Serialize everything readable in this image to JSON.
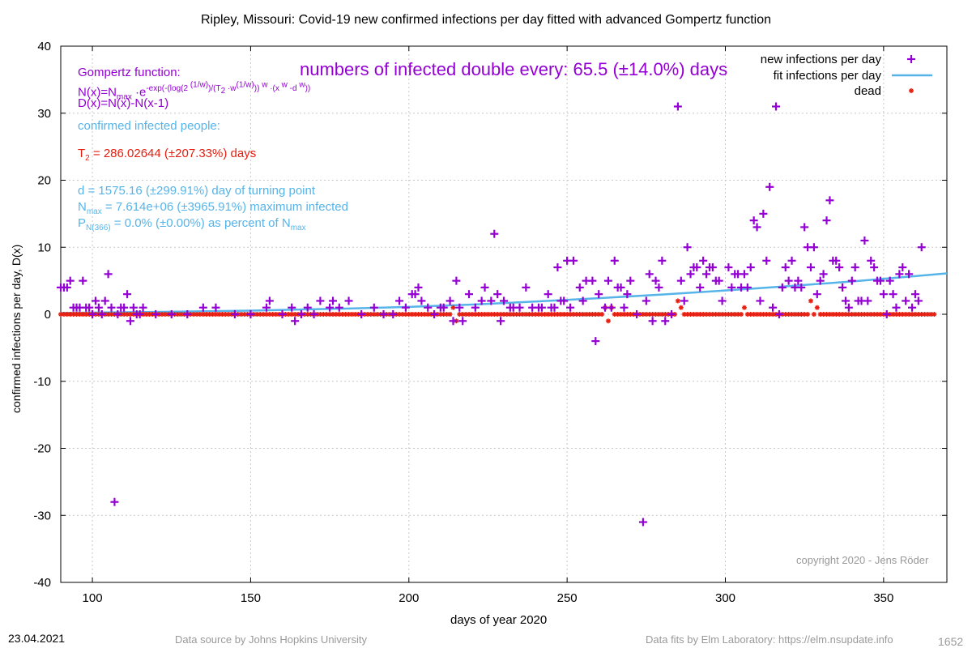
{
  "chart_data": {
    "type": "scatter",
    "title": "Ripley,  Missouri: Covid-19 new confirmed infections per day fitted with advanced Gompertz function",
    "xlabel": "days of year 2020",
    "ylabel": "confirmed infections per day, D(x)",
    "xlim": [
      90,
      370
    ],
    "ylim": [
      -40,
      40
    ],
    "xticks": [
      100,
      150,
      200,
      250,
      300,
      350
    ],
    "yticks": [
      -40,
      -30,
      -20,
      -10,
      0,
      10,
      20,
      30,
      40
    ],
    "grid": true,
    "legend_position": "top-right",
    "series": [
      {
        "name": "new infections per day",
        "style": "plus",
        "color": "#9400d3",
        "points": [
          [
            90,
            4
          ],
          [
            91,
            4
          ],
          [
            92,
            4
          ],
          [
            93,
            5
          ],
          [
            94,
            1
          ],
          [
            95,
            1
          ],
          [
            96,
            1
          ],
          [
            97,
            5
          ],
          [
            98,
            1
          ],
          [
            99,
            1
          ],
          [
            100,
            0
          ],
          [
            101,
            2
          ],
          [
            102,
            1
          ],
          [
            103,
            0
          ],
          [
            104,
            2
          ],
          [
            105,
            6
          ],
          [
            106,
            1
          ],
          [
            107,
            -28
          ],
          [
            108,
            0
          ],
          [
            109,
            1
          ],
          [
            110,
            1
          ],
          [
            111,
            3
          ],
          [
            112,
            -1
          ],
          [
            113,
            1
          ],
          [
            114,
            0
          ],
          [
            115,
            0
          ],
          [
            116,
            1
          ],
          [
            120,
            0
          ],
          [
            125,
            0
          ],
          [
            130,
            0
          ],
          [
            135,
            1
          ],
          [
            139,
            1
          ],
          [
            145,
            0
          ],
          [
            150,
            0
          ],
          [
            155,
            1
          ],
          [
            156,
            2
          ],
          [
            160,
            0
          ],
          [
            163,
            1
          ],
          [
            164,
            -1
          ],
          [
            166,
            0
          ],
          [
            168,
            1
          ],
          [
            170,
            0
          ],
          [
            172,
            2
          ],
          [
            175,
            1
          ],
          [
            176,
            2
          ],
          [
            178,
            1
          ],
          [
            181,
            2
          ],
          [
            185,
            0
          ],
          [
            189,
            1
          ],
          [
            192,
            0
          ],
          [
            195,
            0
          ],
          [
            197,
            2
          ],
          [
            199,
            1
          ],
          [
            201,
            3
          ],
          [
            202,
            3
          ],
          [
            203,
            4
          ],
          [
            204,
            2
          ],
          [
            206,
            1
          ],
          [
            208,
            0
          ],
          [
            210,
            1
          ],
          [
            211,
            1
          ],
          [
            213,
            2
          ],
          [
            214,
            -1
          ],
          [
            215,
            5
          ],
          [
            216,
            1
          ],
          [
            217,
            -1
          ],
          [
            219,
            3
          ],
          [
            221,
            1
          ],
          [
            223,
            2
          ],
          [
            224,
            4
          ],
          [
            226,
            2
          ],
          [
            227,
            12
          ],
          [
            228,
            3
          ],
          [
            229,
            -1
          ],
          [
            230,
            2
          ],
          [
            232,
            1
          ],
          [
            233,
            1
          ],
          [
            235,
            1
          ],
          [
            237,
            4
          ],
          [
            239,
            1
          ],
          [
            241,
            1
          ],
          [
            242,
            1
          ],
          [
            244,
            3
          ],
          [
            245,
            1
          ],
          [
            246,
            1
          ],
          [
            247,
            7
          ],
          [
            248,
            2
          ],
          [
            249,
            2
          ],
          [
            250,
            8
          ],
          [
            251,
            1
          ],
          [
            252,
            8
          ],
          [
            254,
            4
          ],
          [
            255,
            2
          ],
          [
            256,
            5
          ],
          [
            258,
            5
          ],
          [
            259,
            -4
          ],
          [
            260,
            3
          ],
          [
            262,
            1
          ],
          [
            263,
            5
          ],
          [
            264,
            1
          ],
          [
            265,
            8
          ],
          [
            266,
            4
          ],
          [
            267,
            4
          ],
          [
            268,
            1
          ],
          [
            269,
            3
          ],
          [
            270,
            5
          ],
          [
            272,
            0
          ],
          [
            274,
            -31
          ],
          [
            275,
            2
          ],
          [
            276,
            6
          ],
          [
            277,
            -1
          ],
          [
            278,
            5
          ],
          [
            279,
            4
          ],
          [
            280,
            8
          ],
          [
            281,
            -1
          ],
          [
            283,
            0
          ],
          [
            285,
            31
          ],
          [
            286,
            5
          ],
          [
            287,
            2
          ],
          [
            288,
            10
          ],
          [
            289,
            6
          ],
          [
            290,
            7
          ],
          [
            291,
            7
          ],
          [
            292,
            4
          ],
          [
            293,
            8
          ],
          [
            294,
            6
          ],
          [
            295,
            7
          ],
          [
            296,
            7
          ],
          [
            297,
            5
          ],
          [
            298,
            5
          ],
          [
            299,
            2
          ],
          [
            301,
            7
          ],
          [
            302,
            4
          ],
          [
            303,
            6
          ],
          [
            304,
            6
          ],
          [
            305,
            4
          ],
          [
            306,
            6
          ],
          [
            307,
            4
          ],
          [
            308,
            7
          ],
          [
            309,
            14
          ],
          [
            310,
            13
          ],
          [
            311,
            2
          ],
          [
            312,
            15
          ],
          [
            313,
            8
          ],
          [
            314,
            19
          ],
          [
            315,
            1
          ],
          [
            316,
            31
          ],
          [
            317,
            0
          ],
          [
            318,
            4
          ],
          [
            319,
            7
          ],
          [
            320,
            5
          ],
          [
            321,
            8
          ],
          [
            322,
            4
          ],
          [
            323,
            5
          ],
          [
            324,
            4
          ],
          [
            325,
            13
          ],
          [
            326,
            10
          ],
          [
            327,
            7
          ],
          [
            328,
            10
          ],
          [
            329,
            3
          ],
          [
            330,
            5
          ],
          [
            331,
            6
          ],
          [
            332,
            14
          ],
          [
            333,
            17
          ],
          [
            334,
            8
          ],
          [
            335,
            8
          ],
          [
            336,
            7
          ],
          [
            337,
            4
          ],
          [
            338,
            2
          ],
          [
            339,
            1
          ],
          [
            340,
            5
          ],
          [
            341,
            7
          ],
          [
            342,
            2
          ],
          [
            343,
            2
          ],
          [
            344,
            11
          ],
          [
            345,
            2
          ],
          [
            346,
            8
          ],
          [
            347,
            7
          ],
          [
            348,
            5
          ],
          [
            349,
            5
          ],
          [
            350,
            3
          ],
          [
            351,
            0
          ],
          [
            352,
            5
          ],
          [
            353,
            3
          ],
          [
            354,
            1
          ],
          [
            355,
            6
          ],
          [
            356,
            7
          ],
          [
            357,
            2
          ],
          [
            358,
            6
          ],
          [
            359,
            1
          ],
          [
            360,
            3
          ],
          [
            361,
            2
          ],
          [
            362,
            10
          ]
        ]
      },
      {
        "name": "fit infections per day",
        "style": "line",
        "color": "#56b4e9",
        "points": [
          [
            90,
            0.2
          ],
          [
            120,
            0.35
          ],
          [
            150,
            0.55
          ],
          [
            180,
            0.85
          ],
          [
            200,
            1.1
          ],
          [
            220,
            1.45
          ],
          [
            240,
            1.9
          ],
          [
            260,
            2.4
          ],
          [
            280,
            2.95
          ],
          [
            300,
            3.55
          ],
          [
            320,
            4.2
          ],
          [
            340,
            4.9
          ],
          [
            360,
            5.7
          ],
          [
            370,
            6.1
          ]
        ]
      },
      {
        "name": "dead",
        "style": "star",
        "color": "#e51e10",
        "zero_from": 90,
        "zero_to": 366,
        "points": [
          [
            214,
            1
          ],
          [
            215,
            -1
          ],
          [
            262,
            1
          ],
          [
            263,
            -1
          ],
          [
            264,
            1
          ],
          [
            285,
            2
          ],
          [
            286,
            1
          ],
          [
            306,
            1
          ],
          [
            327,
            2
          ],
          [
            329,
            1
          ]
        ]
      }
    ]
  },
  "annotations": {
    "gompertz_heading": "Gompertz function:",
    "formula_n_prefix": "N(x)=N",
    "formula_n_sub": "max",
    "formula_n_mid": " ·e",
    "formula_n_sup1": "-exp(-(log(2 ",
    "formula_n_sup2": "(1/w)",
    "formula_n_sup3": ")/(T",
    "formula_n_sup4": "2",
    "formula_n_sup5": " ·w",
    "formula_n_sup6": "(1/w)",
    "formula_n_sup7": ")) ",
    "formula_n_sup8": "w",
    "formula_n_sup9": " ·(x ",
    "formula_n_sup10": "w",
    "formula_n_sup11": " -d ",
    "formula_n_sup12": "w",
    "formula_n_sup13": "))",
    "formula_d": "D(x)=N(x)-N(x-1)",
    "doubling": "numbers of infected double every: 65.5 (±14.0%) days",
    "confirmed": "confirmed infected people:",
    "t2_prefix": "T",
    "t2_sub": "2",
    "t2_rest": " = 286.02644 (±207.33%) days",
    "d_line": "d = 1575.16 (±299.91%) day of turning point",
    "nmax_prefix": "N",
    "nmax_sub": "max",
    "nmax_rest": " = 7.614e+06 (±3965.91%) maximum infected",
    "p_prefix": "P",
    "p_sub": "N(366)",
    "p_rest": " = 0.0% (±0.00%) as percent of N",
    "p_sub2": "max",
    "copyright": "copyright 2020 - Jens Röder"
  },
  "footer": {
    "date": "23.04.2021",
    "source": "Data source by Johns Hopkins University",
    "fits": "Data fits by Elm Laboratory: https://elm.nsupdate.info",
    "number": "1652"
  },
  "colors": {
    "infections": "#9400d3",
    "fit": "#56b4e9",
    "dead": "#e51e10",
    "grid": "#c8c8c8"
  }
}
